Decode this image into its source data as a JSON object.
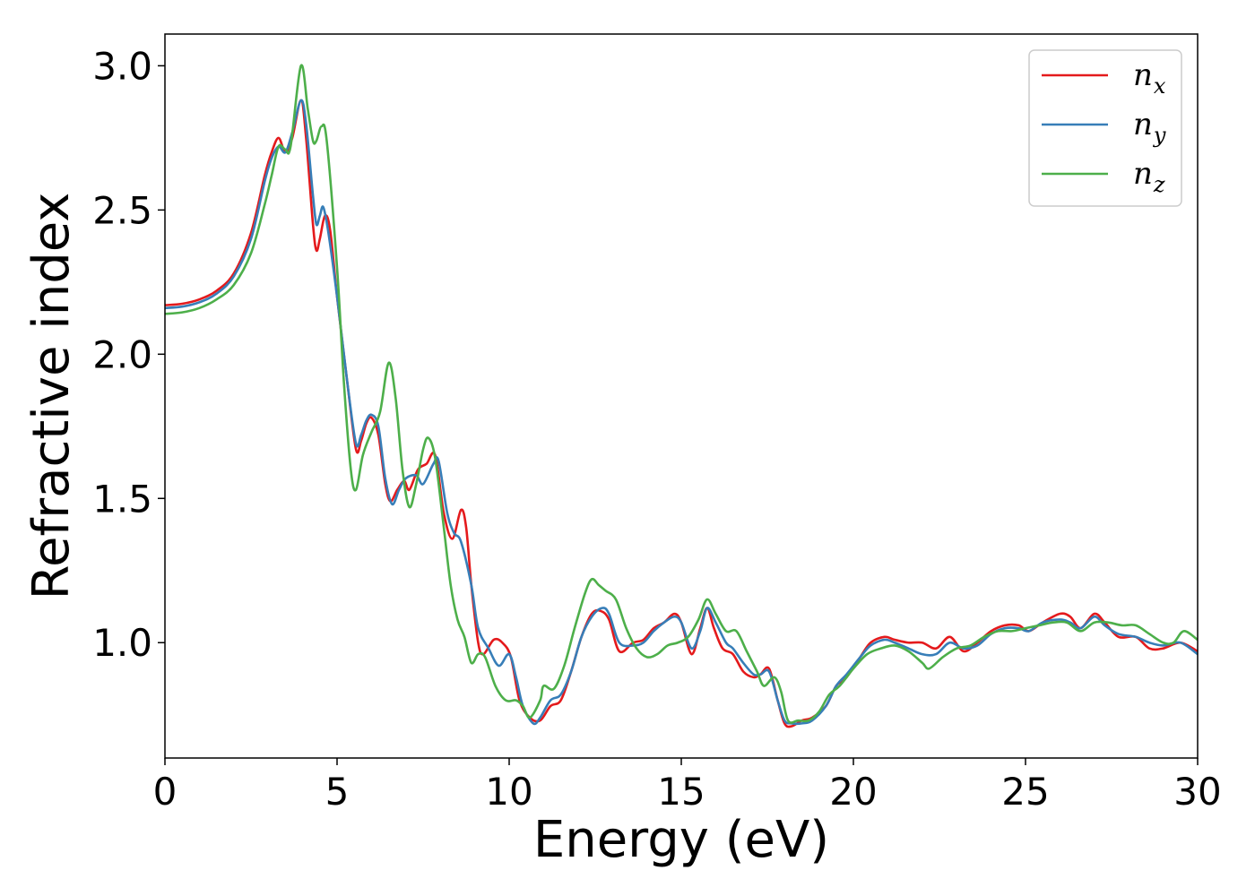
{
  "chart_data": {
    "type": "line",
    "title": "",
    "xlabel": "Energy (eV)",
    "ylabel": "Refractive index",
    "xlim": [
      0,
      30
    ],
    "ylim": [
      0.6,
      3.11
    ],
    "xticks": [
      0,
      5,
      10,
      15,
      20,
      25,
      30
    ],
    "xtick_labels": [
      "0",
      "5",
      "10",
      "15",
      "20",
      "25",
      "30"
    ],
    "yticks": [
      1.0,
      1.5,
      2.0,
      2.5,
      3.0
    ],
    "ytick_labels": [
      "1.0",
      "1.5",
      "2.0",
      "2.5",
      "3.0"
    ],
    "grid": false,
    "legend_position": "top-right",
    "series": [
      {
        "name": "n",
        "subscript": "x",
        "color": "#e41a1c",
        "points": [
          [
            0,
            2.17
          ],
          [
            0.5,
            2.175
          ],
          [
            1.0,
            2.19
          ],
          [
            1.5,
            2.22
          ],
          [
            2.0,
            2.28
          ],
          [
            2.5,
            2.42
          ],
          [
            2.9,
            2.62
          ],
          [
            3.1,
            2.7
          ],
          [
            3.3,
            2.75
          ],
          [
            3.5,
            2.7
          ],
          [
            3.7,
            2.75
          ],
          [
            3.95,
            2.88
          ],
          [
            4.1,
            2.75
          ],
          [
            4.3,
            2.45
          ],
          [
            4.4,
            2.36
          ],
          [
            4.5,
            2.4
          ],
          [
            4.65,
            2.48
          ],
          [
            4.8,
            2.43
          ],
          [
            5.0,
            2.2
          ],
          [
            5.3,
            1.9
          ],
          [
            5.55,
            1.67
          ],
          [
            5.7,
            1.7
          ],
          [
            5.85,
            1.76
          ],
          [
            6.0,
            1.78
          ],
          [
            6.2,
            1.72
          ],
          [
            6.4,
            1.55
          ],
          [
            6.55,
            1.49
          ],
          [
            6.75,
            1.53
          ],
          [
            6.95,
            1.56
          ],
          [
            7.1,
            1.53
          ],
          [
            7.35,
            1.6
          ],
          [
            7.6,
            1.62
          ],
          [
            7.85,
            1.65
          ],
          [
            8.1,
            1.45
          ],
          [
            8.35,
            1.36
          ],
          [
            8.6,
            1.46
          ],
          [
            8.75,
            1.4
          ],
          [
            8.9,
            1.2
          ],
          [
            9.1,
            1.0
          ],
          [
            9.25,
            0.96
          ],
          [
            9.55,
            1.01
          ],
          [
            9.8,
            1.0
          ],
          [
            10.05,
            0.95
          ],
          [
            10.3,
            0.8
          ],
          [
            10.6,
            0.74
          ],
          [
            10.9,
            0.73
          ],
          [
            11.2,
            0.78
          ],
          [
            11.5,
            0.8
          ],
          [
            11.8,
            0.9
          ],
          [
            12.1,
            1.02
          ],
          [
            12.4,
            1.1
          ],
          [
            12.65,
            1.11
          ],
          [
            12.9,
            1.08
          ],
          [
            13.2,
            0.97
          ],
          [
            13.6,
            1.0
          ],
          [
            13.9,
            1.01
          ],
          [
            14.2,
            1.05
          ],
          [
            14.5,
            1.07
          ],
          [
            14.8,
            1.1
          ],
          [
            15.0,
            1.07
          ],
          [
            15.3,
            0.96
          ],
          [
            15.55,
            1.05
          ],
          [
            15.75,
            1.12
          ],
          [
            15.95,
            1.05
          ],
          [
            16.2,
            0.98
          ],
          [
            16.5,
            0.96
          ],
          [
            16.8,
            0.9
          ],
          [
            17.1,
            0.88
          ],
          [
            17.3,
            0.89
          ],
          [
            17.55,
            0.91
          ],
          [
            17.8,
            0.8
          ],
          [
            18.0,
            0.72
          ],
          [
            18.2,
            0.71
          ],
          [
            18.5,
            0.73
          ],
          [
            18.8,
            0.74
          ],
          [
            19.2,
            0.78
          ],
          [
            19.5,
            0.85
          ],
          [
            19.8,
            0.88
          ],
          [
            20.2,
            0.95
          ],
          [
            20.5,
            1.0
          ],
          [
            20.9,
            1.02
          ],
          [
            21.2,
            1.01
          ],
          [
            21.6,
            1.0
          ],
          [
            22.0,
            1.0
          ],
          [
            22.4,
            0.98
          ],
          [
            22.8,
            1.02
          ],
          [
            23.2,
            0.97
          ],
          [
            23.6,
            1.0
          ],
          [
            24.0,
            1.04
          ],
          [
            24.4,
            1.06
          ],
          [
            24.8,
            1.06
          ],
          [
            25.1,
            1.04
          ],
          [
            25.5,
            1.07
          ],
          [
            26.0,
            1.1
          ],
          [
            26.3,
            1.09
          ],
          [
            26.6,
            1.05
          ],
          [
            27.0,
            1.1
          ],
          [
            27.3,
            1.07
          ],
          [
            27.7,
            1.02
          ],
          [
            28.2,
            1.02
          ],
          [
            28.6,
            0.98
          ],
          [
            29.0,
            0.98
          ],
          [
            29.5,
            1.0
          ],
          [
            30.0,
            0.97
          ]
        ]
      },
      {
        "name": "n",
        "subscript": "y",
        "color": "#377eb8",
        "points": [
          [
            0,
            2.16
          ],
          [
            0.5,
            2.165
          ],
          [
            1.0,
            2.18
          ],
          [
            1.5,
            2.21
          ],
          [
            2.0,
            2.27
          ],
          [
            2.5,
            2.4
          ],
          [
            2.9,
            2.6
          ],
          [
            3.1,
            2.68
          ],
          [
            3.3,
            2.72
          ],
          [
            3.5,
            2.7
          ],
          [
            3.7,
            2.77
          ],
          [
            3.95,
            2.88
          ],
          [
            4.1,
            2.8
          ],
          [
            4.3,
            2.55
          ],
          [
            4.4,
            2.45
          ],
          [
            4.5,
            2.48
          ],
          [
            4.6,
            2.51
          ],
          [
            4.75,
            2.42
          ],
          [
            5.0,
            2.2
          ],
          [
            5.3,
            1.9
          ],
          [
            5.55,
            1.69
          ],
          [
            5.7,
            1.72
          ],
          [
            5.85,
            1.77
          ],
          [
            6.0,
            1.79
          ],
          [
            6.2,
            1.75
          ],
          [
            6.4,
            1.57
          ],
          [
            6.6,
            1.48
          ],
          [
            6.8,
            1.53
          ],
          [
            7.0,
            1.57
          ],
          [
            7.3,
            1.58
          ],
          [
            7.5,
            1.55
          ],
          [
            7.8,
            1.62
          ],
          [
            7.95,
            1.63
          ],
          [
            8.2,
            1.45
          ],
          [
            8.4,
            1.38
          ],
          [
            8.6,
            1.35
          ],
          [
            8.9,
            1.2
          ],
          [
            9.1,
            1.05
          ],
          [
            9.4,
            0.98
          ],
          [
            9.7,
            0.92
          ],
          [
            10.0,
            0.96
          ],
          [
            10.2,
            0.88
          ],
          [
            10.4,
            0.78
          ],
          [
            10.7,
            0.72
          ],
          [
            10.9,
            0.74
          ],
          [
            11.2,
            0.8
          ],
          [
            11.5,
            0.82
          ],
          [
            11.8,
            0.9
          ],
          [
            12.1,
            1.02
          ],
          [
            12.4,
            1.09
          ],
          [
            12.7,
            1.12
          ],
          [
            12.9,
            1.1
          ],
          [
            13.2,
            1.0
          ],
          [
            13.6,
            0.99
          ],
          [
            13.9,
            1.0
          ],
          [
            14.2,
            1.04
          ],
          [
            14.5,
            1.07
          ],
          [
            14.8,
            1.09
          ],
          [
            15.0,
            1.07
          ],
          [
            15.3,
            0.98
          ],
          [
            15.55,
            1.04
          ],
          [
            15.75,
            1.12
          ],
          [
            16.0,
            1.07
          ],
          [
            16.3,
            1.0
          ],
          [
            16.5,
            0.98
          ],
          [
            16.8,
            0.93
          ],
          [
            17.1,
            0.89
          ],
          [
            17.3,
            0.89
          ],
          [
            17.55,
            0.9
          ],
          [
            17.8,
            0.8
          ],
          [
            18.0,
            0.73
          ],
          [
            18.2,
            0.72
          ],
          [
            18.5,
            0.72
          ],
          [
            18.8,
            0.73
          ],
          [
            19.2,
            0.78
          ],
          [
            19.5,
            0.85
          ],
          [
            19.8,
            0.89
          ],
          [
            20.2,
            0.95
          ],
          [
            20.5,
            0.99
          ],
          [
            20.9,
            1.01
          ],
          [
            21.2,
            1.0
          ],
          [
            21.6,
            0.98
          ],
          [
            22.0,
            0.96
          ],
          [
            22.4,
            0.96
          ],
          [
            22.8,
            1.0
          ],
          [
            23.2,
            0.98
          ],
          [
            23.6,
            0.99
          ],
          [
            24.0,
            1.03
          ],
          [
            24.4,
            1.05
          ],
          [
            24.8,
            1.05
          ],
          [
            25.1,
            1.04
          ],
          [
            25.5,
            1.07
          ],
          [
            26.0,
            1.08
          ],
          [
            26.3,
            1.07
          ],
          [
            26.6,
            1.05
          ],
          [
            27.0,
            1.09
          ],
          [
            27.3,
            1.06
          ],
          [
            27.7,
            1.03
          ],
          [
            28.2,
            1.02
          ],
          [
            28.6,
            1.0
          ],
          [
            29.0,
            0.99
          ],
          [
            29.5,
            1.0
          ],
          [
            30.0,
            0.96
          ]
        ]
      },
      {
        "name": "n",
        "subscript": "z",
        "color": "#4daf4a",
        "points": [
          [
            0,
            2.14
          ],
          [
            0.5,
            2.145
          ],
          [
            1.0,
            2.16
          ],
          [
            1.5,
            2.19
          ],
          [
            2.0,
            2.24
          ],
          [
            2.5,
            2.35
          ],
          [
            2.9,
            2.52
          ],
          [
            3.1,
            2.62
          ],
          [
            3.3,
            2.72
          ],
          [
            3.5,
            2.71
          ],
          [
            3.65,
            2.72
          ],
          [
            3.95,
            3.0
          ],
          [
            4.15,
            2.85
          ],
          [
            4.3,
            2.74
          ],
          [
            4.4,
            2.74
          ],
          [
            4.55,
            2.79
          ],
          [
            4.7,
            2.74
          ],
          [
            5.0,
            2.3
          ],
          [
            5.2,
            1.9
          ],
          [
            5.4,
            1.6
          ],
          [
            5.55,
            1.53
          ],
          [
            5.75,
            1.65
          ],
          [
            6.0,
            1.73
          ],
          [
            6.25,
            1.8
          ],
          [
            6.5,
            1.97
          ],
          [
            6.7,
            1.85
          ],
          [
            6.9,
            1.6
          ],
          [
            7.1,
            1.47
          ],
          [
            7.3,
            1.55
          ],
          [
            7.5,
            1.67
          ],
          [
            7.65,
            1.71
          ],
          [
            7.85,
            1.64
          ],
          [
            8.1,
            1.4
          ],
          [
            8.3,
            1.2
          ],
          [
            8.5,
            1.08
          ],
          [
            8.7,
            1.02
          ],
          [
            8.9,
            0.93
          ],
          [
            9.1,
            0.96
          ],
          [
            9.3,
            0.95
          ],
          [
            9.6,
            0.85
          ],
          [
            9.9,
            0.8
          ],
          [
            10.2,
            0.8
          ],
          [
            10.4,
            0.78
          ],
          [
            10.6,
            0.74
          ],
          [
            10.9,
            0.8
          ],
          [
            11.0,
            0.85
          ],
          [
            11.3,
            0.84
          ],
          [
            11.6,
            0.92
          ],
          [
            11.9,
            1.05
          ],
          [
            12.2,
            1.17
          ],
          [
            12.4,
            1.22
          ],
          [
            12.6,
            1.2
          ],
          [
            12.8,
            1.18
          ],
          [
            13.1,
            1.15
          ],
          [
            13.4,
            1.05
          ],
          [
            13.7,
            0.98
          ],
          [
            14.0,
            0.95
          ],
          [
            14.3,
            0.96
          ],
          [
            14.6,
            0.99
          ],
          [
            14.9,
            1.0
          ],
          [
            15.2,
            1.02
          ],
          [
            15.5,
            1.08
          ],
          [
            15.75,
            1.15
          ],
          [
            16.0,
            1.1
          ],
          [
            16.3,
            1.04
          ],
          [
            16.6,
            1.04
          ],
          [
            16.9,
            0.97
          ],
          [
            17.2,
            0.9
          ],
          [
            17.4,
            0.85
          ],
          [
            17.7,
            0.88
          ],
          [
            17.9,
            0.83
          ],
          [
            18.1,
            0.73
          ],
          [
            18.4,
            0.73
          ],
          [
            18.7,
            0.73
          ],
          [
            19.0,
            0.76
          ],
          [
            19.3,
            0.82
          ],
          [
            19.6,
            0.85
          ],
          [
            20.0,
            0.91
          ],
          [
            20.4,
            0.96
          ],
          [
            20.8,
            0.98
          ],
          [
            21.2,
            0.99
          ],
          [
            21.6,
            0.97
          ],
          [
            22.0,
            0.93
          ],
          [
            22.2,
            0.91
          ],
          [
            22.6,
            0.95
          ],
          [
            23.0,
            0.98
          ],
          [
            23.4,
            0.99
          ],
          [
            23.8,
            1.02
          ],
          [
            24.2,
            1.04
          ],
          [
            24.6,
            1.04
          ],
          [
            25.0,
            1.05
          ],
          [
            25.4,
            1.06
          ],
          [
            25.8,
            1.07
          ],
          [
            26.2,
            1.07
          ],
          [
            26.6,
            1.04
          ],
          [
            27.0,
            1.07
          ],
          [
            27.4,
            1.07
          ],
          [
            27.8,
            1.06
          ],
          [
            28.2,
            1.06
          ],
          [
            28.6,
            1.03
          ],
          [
            29.0,
            1.0
          ],
          [
            29.3,
            1.0
          ],
          [
            29.6,
            1.04
          ],
          [
            30.0,
            1.01
          ]
        ]
      }
    ]
  }
}
